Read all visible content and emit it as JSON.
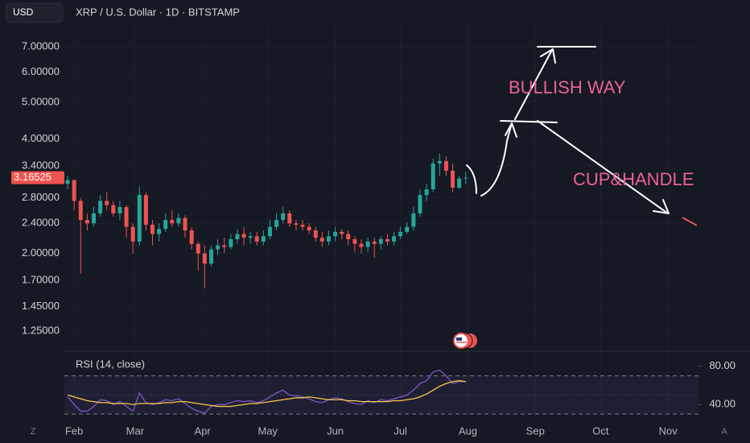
{
  "chart_data": {
    "type": "candlestick",
    "title": "XRP / U.S. Dollar · 1D · BITSTAMP",
    "currency": "USD",
    "log_scale": true,
    "grid": true,
    "up_color": "#26a69a",
    "down_color": "#ef5350",
    "x": [
      -3,
      0,
      3,
      6,
      9,
      12,
      15,
      18,
      21,
      24,
      27,
      30,
      33,
      36,
      39,
      42,
      45,
      48,
      51,
      54,
      57,
      60,
      63,
      66,
      69,
      72,
      75,
      78,
      81,
      84,
      87,
      90,
      93,
      96,
      99,
      102,
      105,
      108,
      111,
      114,
      117,
      120,
      123,
      126,
      129,
      132,
      135,
      138,
      141,
      144,
      147,
      150,
      153,
      156,
      159,
      162,
      165,
      168,
      171,
      174,
      177,
      180
    ],
    "open": [
      3.05,
      3.12,
      2.75,
      2.45,
      2.4,
      2.55,
      2.75,
      2.68,
      2.55,
      2.65,
      2.35,
      2.15,
      2.85,
      2.38,
      2.25,
      2.32,
      2.45,
      2.4,
      2.48,
      2.3,
      2.12,
      2.0,
      1.88,
      2.05,
      2.1,
      2.08,
      2.18,
      2.25,
      2.2,
      2.22,
      2.15,
      2.22,
      2.35,
      2.45,
      2.55,
      2.4,
      2.38,
      2.35,
      2.3,
      2.2,
      2.15,
      2.22,
      2.28,
      2.25,
      2.18,
      2.12,
      2.08,
      2.15,
      2.12,
      2.18,
      2.15,
      2.22,
      2.28,
      2.35,
      2.55,
      2.85,
      2.95,
      3.45,
      3.5,
      3.3,
      2.98,
      3.15
    ],
    "high": [
      3.2,
      3.1,
      2.8,
      2.55,
      2.65,
      2.85,
      2.9,
      2.75,
      2.75,
      2.68,
      2.4,
      3.0,
      2.9,
      2.45,
      2.4,
      2.55,
      2.6,
      2.55,
      2.52,
      2.35,
      2.15,
      2.1,
      2.1,
      2.18,
      2.2,
      2.25,
      2.32,
      2.35,
      2.28,
      2.28,
      2.3,
      2.45,
      2.55,
      2.65,
      2.6,
      2.45,
      2.45,
      2.4,
      2.35,
      2.28,
      2.3,
      2.35,
      2.32,
      2.3,
      2.22,
      2.18,
      2.2,
      2.2,
      2.22,
      2.25,
      2.28,
      2.35,
      2.42,
      2.65,
      2.95,
      3.05,
      3.55,
      3.66,
      3.6,
      3.45,
      3.2,
      3.28
    ],
    "low": [
      2.95,
      2.6,
      1.77,
      2.3,
      2.35,
      2.5,
      2.6,
      2.5,
      2.45,
      2.2,
      2.0,
      2.1,
      2.3,
      2.1,
      2.15,
      2.28,
      2.35,
      2.35,
      2.2,
      2.05,
      1.8,
      1.62,
      1.85,
      1.98,
      2.0,
      2.05,
      2.12,
      2.1,
      2.12,
      2.1,
      2.1,
      2.18,
      2.3,
      2.4,
      2.35,
      2.3,
      2.3,
      2.25,
      2.15,
      2.08,
      2.1,
      2.15,
      2.18,
      2.1,
      2.02,
      2.0,
      2.02,
      1.95,
      2.05,
      2.1,
      2.1,
      2.18,
      2.25,
      2.3,
      2.5,
      2.75,
      2.9,
      3.2,
      3.2,
      2.9,
      2.95,
      3.05
    ],
    "close": [
      3.12,
      2.75,
      2.45,
      2.4,
      2.55,
      2.75,
      2.68,
      2.55,
      2.65,
      2.35,
      2.15,
      2.85,
      2.38,
      2.25,
      2.32,
      2.45,
      2.4,
      2.48,
      2.3,
      2.12,
      2.0,
      1.88,
      2.05,
      2.1,
      2.08,
      2.18,
      2.25,
      2.2,
      2.22,
      2.15,
      2.22,
      2.35,
      2.45,
      2.55,
      2.4,
      2.38,
      2.35,
      2.3,
      2.2,
      2.15,
      2.22,
      2.28,
      2.25,
      2.18,
      2.12,
      2.08,
      2.15,
      2.12,
      2.18,
      2.15,
      2.22,
      2.28,
      2.35,
      2.55,
      2.85,
      2.95,
      3.45,
      3.5,
      3.3,
      2.98,
      3.15,
      3.16525
    ],
    "xlim": [
      -4.5,
      287
    ],
    "xticks": [
      {
        "value": 0,
        "label": "Feb"
      },
      {
        "value": 28,
        "label": "Mar"
      },
      {
        "value": 59,
        "label": "Apr"
      },
      {
        "value": 89,
        "label": "May"
      },
      {
        "value": 120,
        "label": "Jun"
      },
      {
        "value": 150,
        "label": "Jul"
      },
      {
        "value": 181,
        "label": "Aug"
      },
      {
        "value": 212,
        "label": "Sep"
      },
      {
        "value": 242,
        "label": "Oct"
      },
      {
        "value": 273,
        "label": "Nov"
      }
    ],
    "ylim": [
      1.112,
      8.02
    ],
    "yticks": [
      {
        "value": 7,
        "label": "7.00000"
      },
      {
        "value": 6,
        "label": "6.00000"
      },
      {
        "value": 5,
        "label": "5.00000"
      },
      {
        "value": 4,
        "label": "4.00000"
      },
      {
        "value": 3.4,
        "label": "3.40000"
      },
      {
        "value": 2.8,
        "label": "2.80000"
      },
      {
        "value": 2.4,
        "label": "2.40000"
      },
      {
        "value": 2,
        "label": "2.00000"
      },
      {
        "value": 1.7,
        "label": "1.70000"
      },
      {
        "value": 1.45,
        "label": "1.45000"
      },
      {
        "value": 1.25,
        "label": "1.25000"
      }
    ],
    "annotations": [
      "BULLISH WAY",
      "CUP&HANDLE"
    ],
    "annotation_color": "#f06292",
    "rsi": {
      "title": "RSI (14, close)",
      "color": "#7e57c2",
      "values": [
        48,
        40,
        33,
        33,
        38,
        45,
        44,
        40,
        43,
        38,
        33,
        52,
        42,
        40,
        42,
        45,
        44,
        46,
        41,
        36,
        33,
        31,
        38,
        40,
        40,
        42,
        44,
        43,
        44,
        42,
        44,
        48,
        52,
        55,
        50,
        49,
        48,
        46,
        43,
        42,
        45,
        47,
        46,
        43,
        41,
        40,
        44,
        42,
        45,
        44,
        46,
        48,
        50,
        55,
        62,
        65,
        74,
        76,
        70,
        62,
        64,
        64
      ],
      "ma_color": "#f7c948",
      "ma_values": [
        50,
        48,
        46,
        44,
        43,
        42,
        42,
        41,
        41,
        41,
        40,
        41,
        41,
        41,
        41,
        42,
        42,
        43,
        43,
        42,
        41,
        40,
        39,
        38,
        38,
        38,
        39,
        40,
        41,
        41,
        42,
        43,
        44,
        45,
        46,
        47,
        47,
        48,
        47,
        46,
        45,
        45,
        45,
        44,
        44,
        43,
        43,
        43,
        43,
        43,
        44,
        44,
        45,
        46,
        48,
        51,
        55,
        59,
        62,
        64,
        65,
        64
      ],
      "ylim": [
        25,
        95
      ],
      "yticks": [
        {
          "value": 80,
          "label": "80.00"
        },
        {
          "value": 40,
          "label": "40.00"
        }
      ],
      "bands": [
        70,
        30
      ],
      "midline": 50
    },
    "scale_buttons": [
      "Z",
      "A"
    ]
  }
}
